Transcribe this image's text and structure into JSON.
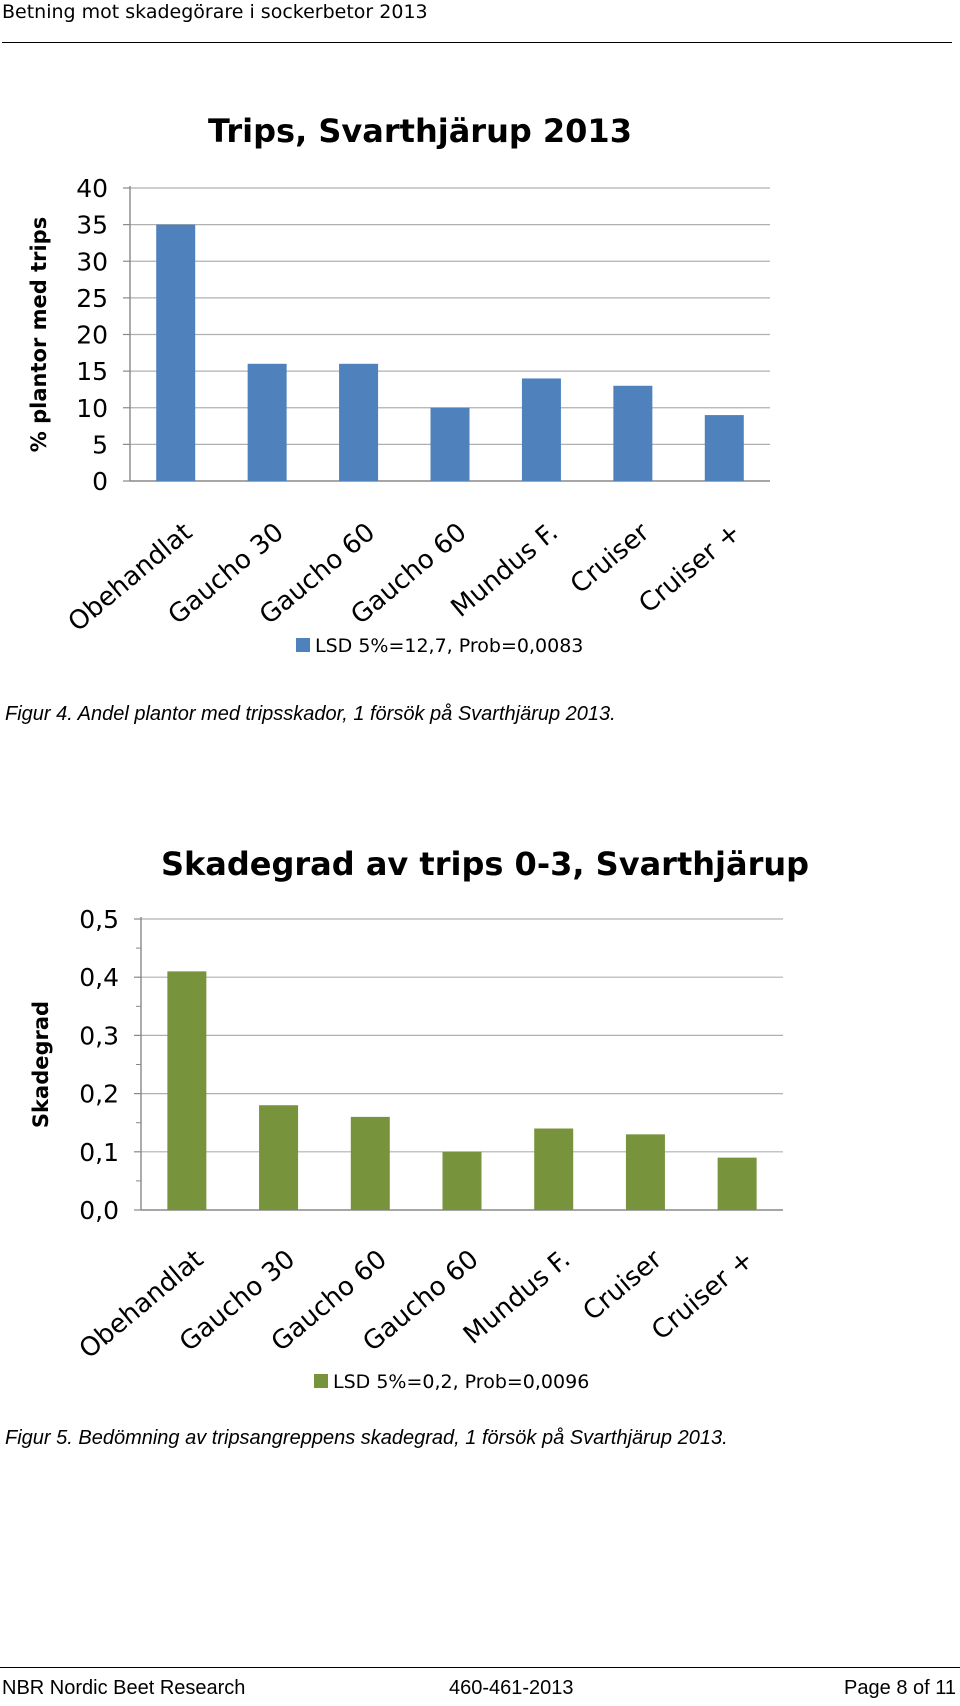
{
  "header": {
    "title": "Betning mot skadegörare i sockerbetor 2013"
  },
  "figures": [
    {
      "caption": "Figur 4. Andel plantor med tripsskador, 1 försök på Svarthjärup 2013.",
      "chart_data": {
        "type": "bar",
        "title": "Trips, Svarthjärup 2013",
        "ylabel": "% plantor med trips",
        "xlabel": "",
        "categories": [
          "Obehandlat",
          "Gaucho 30",
          "Gaucho 60",
          "Gaucho 60",
          "Mundus F.",
          "Cruiser",
          "Cruiser +"
        ],
        "series": [
          {
            "name": "LSD 5%=12,7, Prob=0,0083",
            "values": [
              35,
              16,
              16,
              10,
              14,
              13,
              9
            ],
            "color": "#4f81bd"
          }
        ],
        "ylim": [
          0,
          40
        ],
        "yticks": [
          "0",
          "5",
          "10",
          "15",
          "20",
          "25",
          "30",
          "35",
          "40"
        ],
        "grid": true,
        "legend": "bottom"
      }
    },
    {
      "caption": "Figur 5. Bedömning av tripsangreppens skadegrad, 1 försök på Svarthjärup 2013.",
      "chart_data": {
        "type": "bar",
        "title": "Skadegrad av trips 0-3, Svarthjärup",
        "ylabel": "Skadegrad",
        "xlabel": "",
        "categories": [
          "Obehandlat",
          "Gaucho 30",
          "Gaucho 60",
          "Gaucho 60",
          "Mundus F.",
          "Cruiser",
          "Cruiser +"
        ],
        "series": [
          {
            "name": "LSD 5%=0,2, Prob=0,0096",
            "values": [
              0.41,
              0.18,
              0.16,
              0.1,
              0.14,
              0.13,
              0.09
            ],
            "color": "#77933c"
          }
        ],
        "ylim": [
          0,
          0.5
        ],
        "yticks": [
          "0,0",
          "0,1",
          "0,2",
          "0,3",
          "0,4",
          "0,5"
        ],
        "grid": true,
        "legend": "bottom"
      }
    }
  ],
  "footer": {
    "left": "NBR Nordic Beet Research",
    "center": "460-461-2013",
    "right": "Page 8 of 11"
  }
}
